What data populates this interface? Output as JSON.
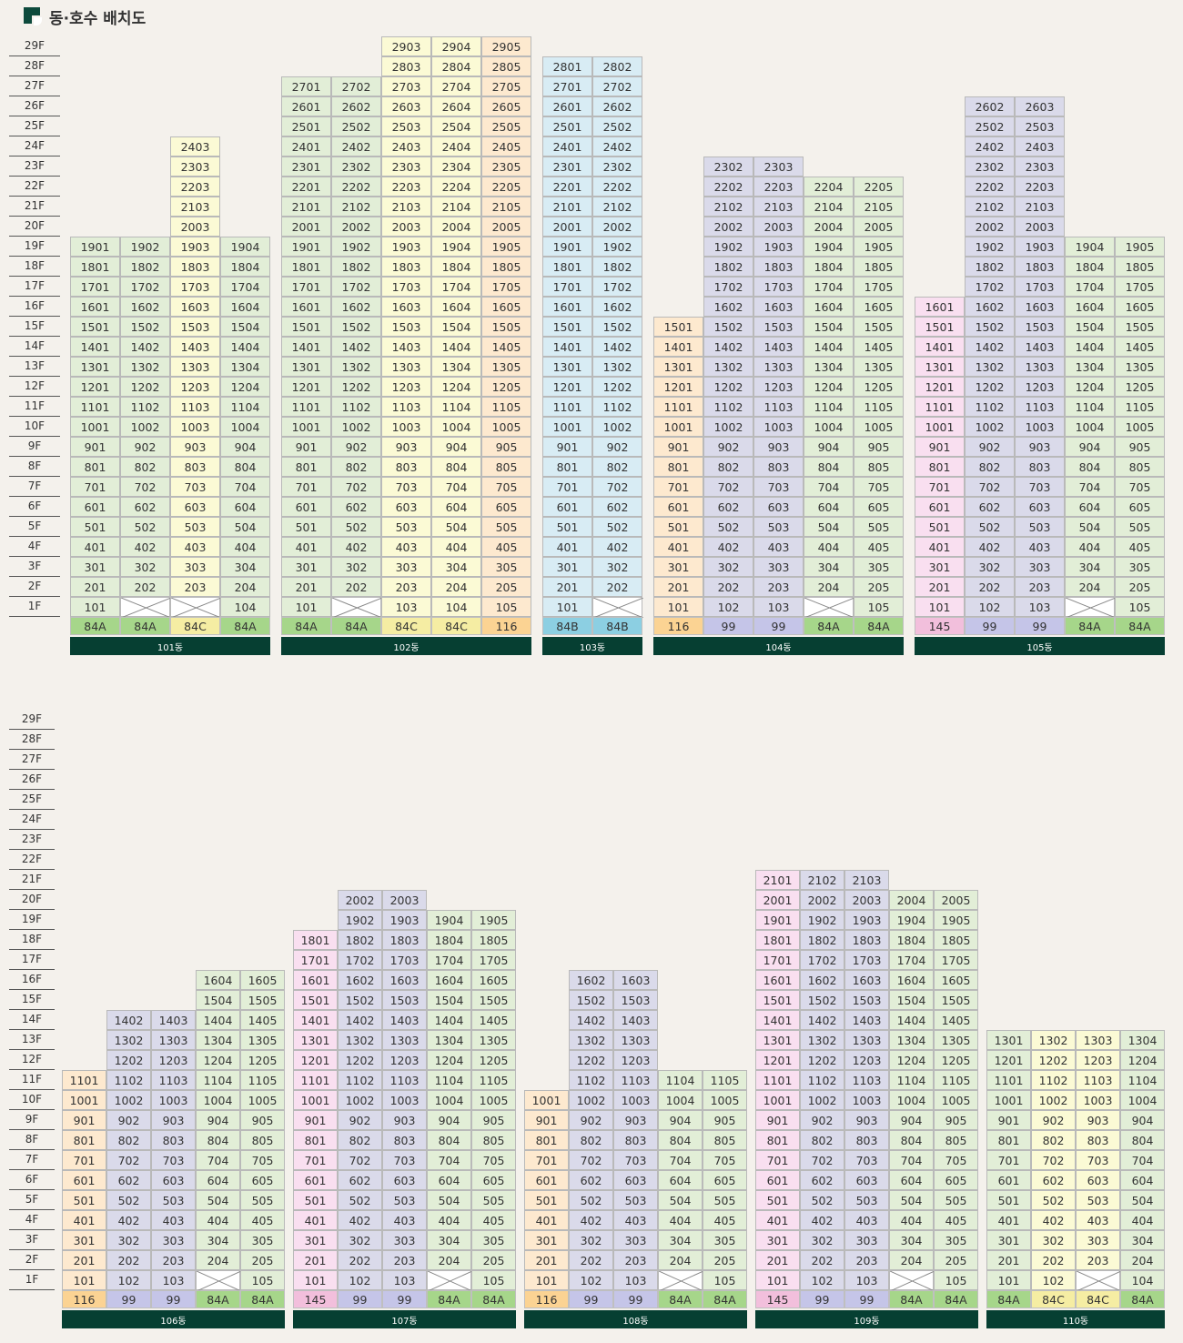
{
  "title": "동·호수 배치도",
  "colors": {
    "84A": {
      "cell": "#e2eed7",
      "type": "#a6d68a"
    },
    "84B": {
      "cell": "#d8ecf4",
      "type": "#8ccfe2"
    },
    "84C": {
      "cell": "#fbfad5",
      "type": "#f5eda3"
    },
    "116": {
      "cell": "#fde9cf",
      "type": "#fbd393"
    },
    "99": {
      "cell": "#dadaea",
      "type": "#c5c5e8"
    },
    "145": {
      "cell": "#f9dff0",
      "type": "#f2bfdc"
    }
  },
  "rows": [
    {
      "floors": [
        "29F",
        "28F",
        "27F",
        "26F",
        "25F",
        "24F",
        "23F",
        "22F",
        "21F",
        "20F",
        "19F",
        "18F",
        "17F",
        "16F",
        "15F",
        "14F",
        "13F",
        "12F",
        "11F",
        "10F",
        "9F",
        "8F",
        "7F",
        "6F",
        "5F",
        "4F",
        "3F",
        "2F",
        "1F"
      ],
      "buildings": [
        {
          "name": "101동",
          "lines": [
            {
              "type": "84A",
              "label": "84A",
              "top": 19,
              "empty": []
            },
            {
              "type": "84A",
              "label": "84A",
              "top": 19,
              "empty": [
                1
              ]
            },
            {
              "type": "84C",
              "label": "84C",
              "top": 24,
              "empty": [
                1
              ]
            },
            {
              "type": "84A",
              "label": "84A",
              "top": 19,
              "empty": []
            }
          ]
        },
        {
          "name": "102동",
          "lines": [
            {
              "type": "84A",
              "label": "84A",
              "top": 27,
              "empty": []
            },
            {
              "type": "84A",
              "label": "84A",
              "top": 27,
              "empty": [
                1
              ]
            },
            {
              "type": "84C",
              "label": "84C",
              "top": 29,
              "empty": []
            },
            {
              "type": "84C",
              "label": "84C",
              "top": 29,
              "empty": []
            },
            {
              "type": "116",
              "label": "116",
              "top": 29,
              "empty": []
            }
          ]
        },
        {
          "name": "103동",
          "lines": [
            {
              "type": "84B",
              "label": "84B",
              "top": 28,
              "empty": []
            },
            {
              "type": "84B",
              "label": "84B",
              "top": 28,
              "empty": [
                1
              ]
            }
          ]
        },
        {
          "name": "104동",
          "lines": [
            {
              "type": "116",
              "label": "116",
              "top": 15,
              "empty": []
            },
            {
              "type": "99",
              "label": "99",
              "top": 23,
              "empty": []
            },
            {
              "type": "99",
              "label": "99",
              "top": 23,
              "empty": []
            },
            {
              "type": "84A",
              "label": "84A",
              "top": 22,
              "empty": [
                1
              ]
            },
            {
              "type": "84A",
              "label": "84A",
              "top": 22,
              "empty": []
            }
          ]
        },
        {
          "name": "105동",
          "lines": [
            {
              "type": "145",
              "label": "145",
              "top": 16,
              "empty": []
            },
            {
              "type": "99",
              "label": "99",
              "top": 26,
              "empty": []
            },
            {
              "type": "99",
              "label": "99",
              "top": 26,
              "empty": []
            },
            {
              "type": "84A",
              "label": "84A",
              "top": 19,
              "empty": [
                1
              ]
            },
            {
              "type": "84A",
              "label": "84A",
              "top": 19,
              "empty": []
            }
          ]
        }
      ]
    },
    {
      "floors": [
        "29F",
        "28F",
        "27F",
        "26F",
        "25F",
        "24F",
        "23F",
        "22F",
        "21F",
        "20F",
        "19F",
        "18F",
        "17F",
        "16F",
        "15F",
        "14F",
        "13F",
        "12F",
        "11F",
        "10F",
        "9F",
        "8F",
        "7F",
        "6F",
        "5F",
        "4F",
        "3F",
        "2F",
        "1F"
      ],
      "buildings": [
        {
          "name": "106동",
          "lines": [
            {
              "type": "116",
              "label": "116",
              "top": 11,
              "empty": []
            },
            {
              "type": "99",
              "label": "99",
              "top": 14,
              "empty": []
            },
            {
              "type": "99",
              "label": "99",
              "top": 14,
              "empty": []
            },
            {
              "type": "84A",
              "label": "84A",
              "top": 16,
              "empty": [
                1
              ]
            },
            {
              "type": "84A",
              "label": "84A",
              "top": 16,
              "empty": []
            }
          ]
        },
        {
          "name": "107동",
          "lines": [
            {
              "type": "145",
              "label": "145",
              "top": 18,
              "empty": []
            },
            {
              "type": "99",
              "label": "99",
              "top": 20,
              "empty": []
            },
            {
              "type": "99",
              "label": "99",
              "top": 20,
              "empty": []
            },
            {
              "type": "84A",
              "label": "84A",
              "top": 19,
              "empty": [
                1
              ]
            },
            {
              "type": "84A",
              "label": "84A",
              "top": 19,
              "empty": []
            }
          ]
        },
        {
          "name": "108동",
          "lines": [
            {
              "type": "116",
              "label": "116",
              "top": 10,
              "empty": []
            },
            {
              "type": "99",
              "label": "99",
              "top": 16,
              "empty": []
            },
            {
              "type": "99",
              "label": "99",
              "top": 16,
              "empty": []
            },
            {
              "type": "84A",
              "label": "84A",
              "top": 11,
              "empty": [
                1
              ]
            },
            {
              "type": "84A",
              "label": "84A",
              "top": 11,
              "empty": []
            }
          ]
        },
        {
          "name": "109동",
          "lines": [
            {
              "type": "145",
              "label": "145",
              "top": 21,
              "empty": []
            },
            {
              "type": "99",
              "label": "99",
              "top": 21,
              "empty": []
            },
            {
              "type": "99",
              "label": "99",
              "top": 21,
              "empty": []
            },
            {
              "type": "84A",
              "label": "84A",
              "top": 20,
              "empty": [
                1
              ]
            },
            {
              "type": "84A",
              "label": "84A",
              "top": 20,
              "empty": []
            }
          ]
        },
        {
          "name": "110동",
          "lines": [
            {
              "type": "84A",
              "label": "84A",
              "top": 13,
              "empty": []
            },
            {
              "type": "84C",
              "label": "84C",
              "top": 13,
              "empty": []
            },
            {
              "type": "84C",
              "label": "84C",
              "top": 13,
              "empty": [
                1
              ]
            },
            {
              "type": "84A",
              "label": "84A",
              "top": 13,
              "empty": []
            }
          ]
        }
      ]
    }
  ]
}
